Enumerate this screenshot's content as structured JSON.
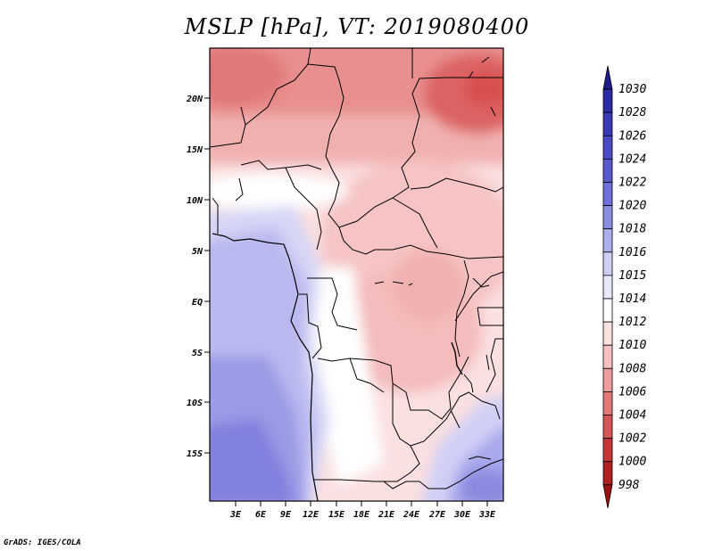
{
  "title": "MSLP [hPa], VT: 2019080400",
  "credit": "GrADS: IGES/COLA",
  "map": {
    "lat_labels": [
      "20N",
      "15N",
      "10N",
      "5N",
      "EQ",
      "5S",
      "10S",
      "15S"
    ],
    "lon_labels": [
      "3E",
      "6E",
      "9E",
      "12E",
      "15E",
      "18E",
      "21E",
      "24E",
      "27E",
      "30E",
      "33E"
    ]
  },
  "colorbar": {
    "levels": [
      "1030",
      "1028",
      "1026",
      "1024",
      "1022",
      "1020",
      "1018",
      "1016",
      "1015",
      "1014",
      "1012",
      "1010",
      "1008",
      "1006",
      "1004",
      "1002",
      "1000",
      "998"
    ],
    "colors": [
      "#1f1a8c",
      "#2a2aa6",
      "#3a3ab8",
      "#4a4ac6",
      "#5a5acf",
      "#7070dc",
      "#8c8ce4",
      "#aeaeee",
      "#cfcff6",
      "#e8e8fb",
      "#ffffff",
      "#fde2e2",
      "#f7c1c1",
      "#ee9c9c",
      "#e47878",
      "#d85555",
      "#c63636",
      "#b02020",
      "#9a1212"
    ]
  }
}
